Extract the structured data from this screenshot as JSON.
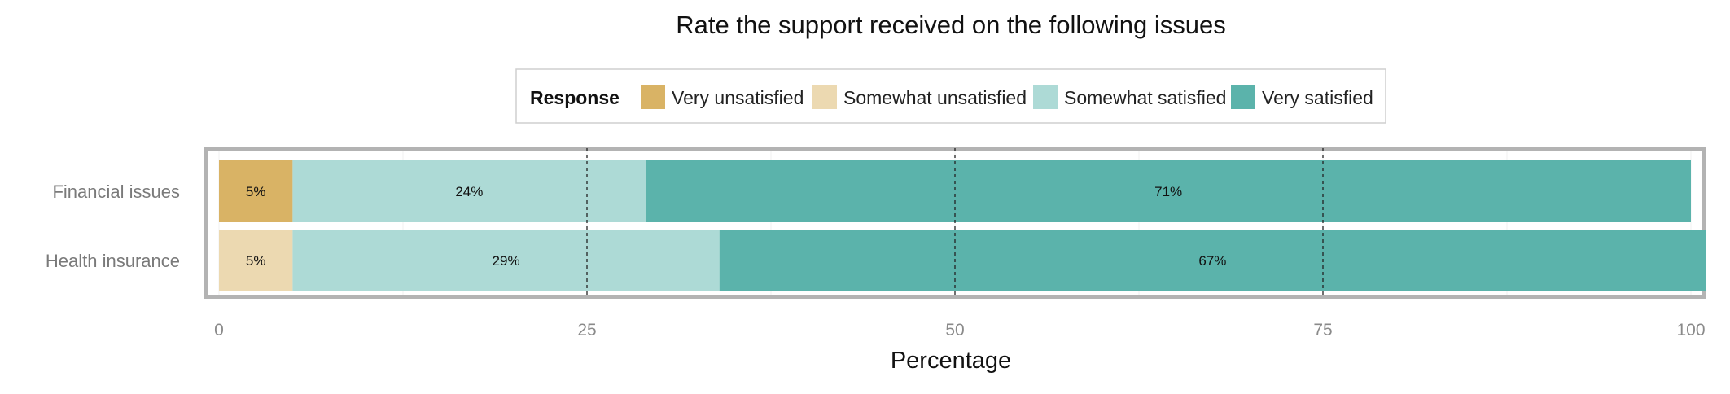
{
  "chart_data": {
    "type": "bar",
    "orientation": "horizontal",
    "stacked": true,
    "title": "Rate the support received on the following issues",
    "xlabel": "Percentage",
    "ylabel": "",
    "xlim": [
      0,
      100
    ],
    "xticks": [
      0,
      25,
      50,
      75,
      100
    ],
    "grid": true,
    "reference_lines": [
      25,
      50,
      75
    ],
    "legend": {
      "title": "Response",
      "position": "top",
      "entries": [
        {
          "name": "Very unsatisfied",
          "color": "#D9B365"
        },
        {
          "name": "Somewhat unsatisfied",
          "color": "#ECD9B1"
        },
        {
          "name": "Somewhat satisfied",
          "color": "#ADDAD6"
        },
        {
          "name": "Very satisfied",
          "color": "#5BB3AB"
        }
      ]
    },
    "categories": [
      "Financial issues",
      "Health insurance"
    ],
    "series": [
      {
        "name": "Very unsatisfied",
        "values": [
          5,
          0
        ]
      },
      {
        "name": "Somewhat unsatisfied",
        "values": [
          0,
          5
        ]
      },
      {
        "name": "Somewhat satisfied",
        "values": [
          24,
          29
        ]
      },
      {
        "name": "Very satisfied",
        "values": [
          71,
          67
        ]
      }
    ],
    "data_labels": [
      [
        "5%",
        "",
        "24%",
        "71%"
      ],
      [
        "",
        "5%",
        "29%",
        "67%"
      ]
    ]
  }
}
